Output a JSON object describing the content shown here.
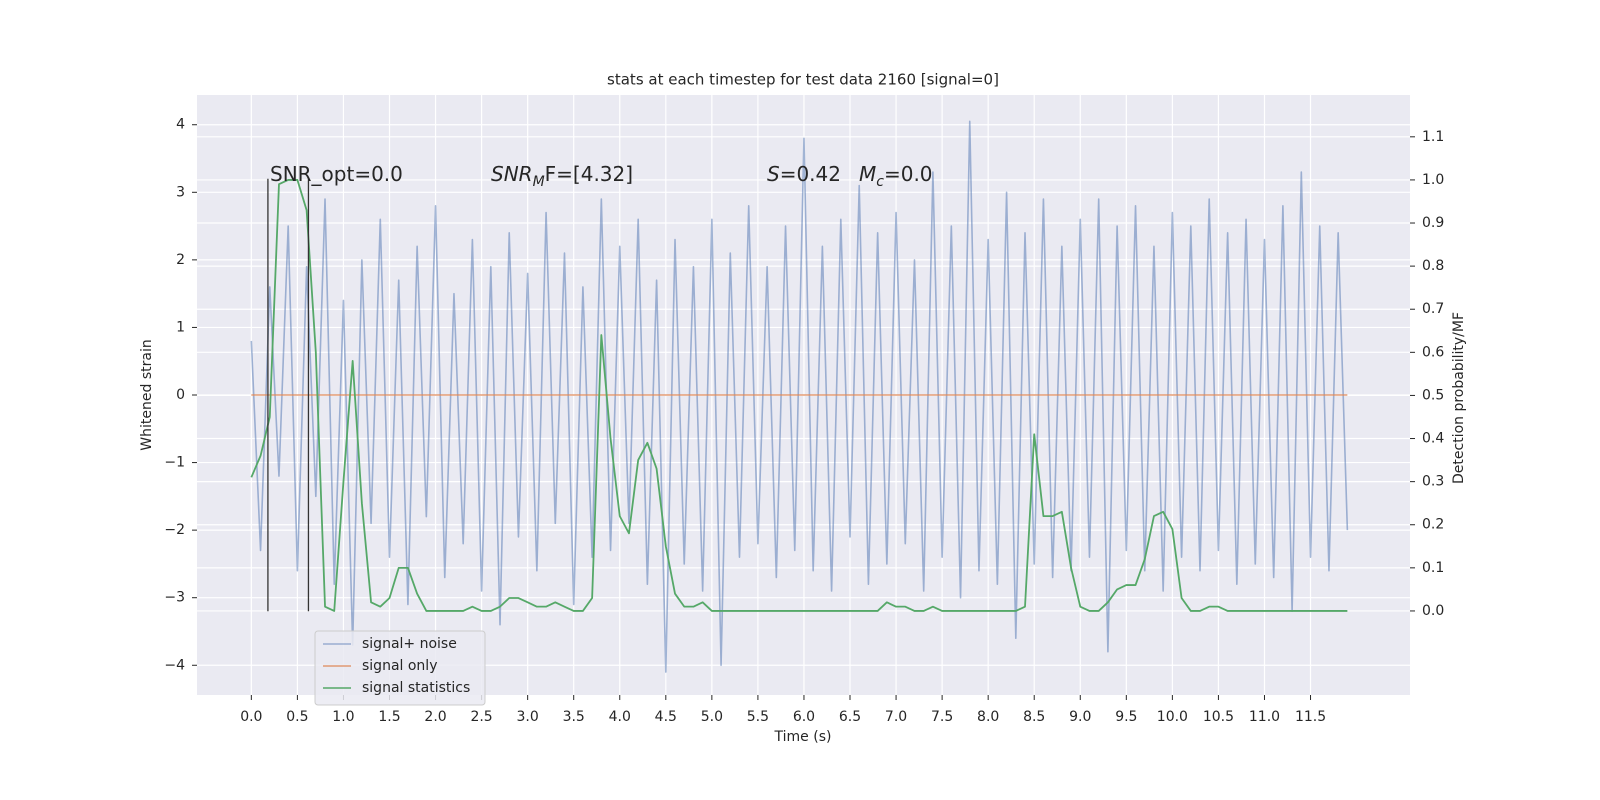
{
  "chart_data": {
    "type": "line",
    "title": "stats at each timestep for test data 2160 [signal=0]",
    "xlabel": "Time (s)",
    "ylabel": "Whitened strain",
    "y2label": "Detection probability/MF",
    "annotations": [
      {
        "text": "SNR_opt=0.0"
      },
      {
        "italic": "SNR",
        "sub": "M",
        "text": "F=[4.32]"
      },
      {
        "italic": "S",
        "text": "=0.42"
      },
      {
        "italic": "M",
        "sub": "c",
        "text": "=0.0"
      }
    ],
    "x": [
      0.0,
      0.1,
      0.2,
      0.3,
      0.4,
      0.5,
      0.6,
      0.7,
      0.8,
      0.9,
      1.0,
      1.1,
      1.2,
      1.3,
      1.4,
      1.5,
      1.6,
      1.7,
      1.8,
      1.9,
      2.0,
      2.1,
      2.2,
      2.3,
      2.4,
      2.5,
      2.6,
      2.7,
      2.8,
      2.9,
      3.0,
      3.1,
      3.2,
      3.3,
      3.4,
      3.5,
      3.6,
      3.7,
      3.8,
      3.9,
      4.0,
      4.1,
      4.2,
      4.3,
      4.4,
      4.5,
      4.6,
      4.7,
      4.8,
      4.9,
      5.0,
      5.1,
      5.2,
      5.3,
      5.4,
      5.5,
      5.6,
      5.7,
      5.8,
      5.9,
      6.0,
      6.1,
      6.2,
      6.3,
      6.4,
      6.5,
      6.6,
      6.7,
      6.8,
      6.9,
      7.0,
      7.1,
      7.2,
      7.3,
      7.4,
      7.5,
      7.6,
      7.7,
      7.8,
      7.9,
      8.0,
      8.1,
      8.2,
      8.3,
      8.4,
      8.5,
      8.6,
      8.7,
      8.8,
      8.9,
      9.0,
      9.1,
      9.2,
      9.3,
      9.4,
      9.5,
      9.6,
      9.7,
      9.8,
      9.9,
      10.0,
      10.1,
      10.2,
      10.3,
      10.4,
      10.5,
      10.6,
      10.7,
      10.8,
      10.9,
      11.0,
      11.1,
      11.2,
      11.3,
      11.4,
      11.5,
      11.6,
      11.7,
      11.8,
      11.9
    ],
    "series": [
      {
        "name": "signal+ noise",
        "color": "#4c72b0",
        "values": [
          0.8,
          -2.3,
          1.6,
          -1.2,
          2.5,
          -2.6,
          1.9,
          -1.5,
          2.9,
          -2.8,
          1.4,
          -3.7,
          2.0,
          -1.9,
          2.6,
          -2.4,
          1.7,
          -3.1,
          2.2,
          -1.8,
          2.8,
          -2.7,
          1.5,
          -2.2,
          2.3,
          -2.9,
          1.9,
          -3.4,
          2.4,
          -2.1,
          1.8,
          -2.6,
          2.7,
          -1.9,
          2.1,
          -3.1,
          1.6,
          -2.4,
          2.9,
          -2.3,
          2.2,
          -1.9,
          2.6,
          -2.8,
          1.7,
          -4.1,
          2.3,
          -2.5,
          1.9,
          -2.9,
          2.6,
          -4.0,
          2.1,
          -2.4,
          2.8,
          -2.2,
          1.9,
          -2.7,
          2.5,
          -2.3,
          3.8,
          -2.6,
          2.2,
          -2.9,
          2.6,
          -2.1,
          3.1,
          -2.8,
          2.4,
          -2.5,
          2.7,
          -2.2,
          2.0,
          -2.9,
          3.3,
          -2.4,
          2.5,
          -3.0,
          4.05,
          -2.6,
          2.3,
          -2.8,
          3.0,
          -3.6,
          2.4,
          -2.5,
          2.9,
          -2.7,
          2.2,
          -2.6,
          2.6,
          -2.4,
          2.9,
          -3.8,
          2.5,
          -2.3,
          2.8,
          -2.6,
          2.2,
          -2.9,
          2.7,
          -2.4,
          2.5,
          -2.6,
          2.9,
          -2.3,
          2.4,
          -2.8,
          2.6,
          -2.5,
          2.3,
          -2.7,
          2.8,
          -3.2,
          3.3,
          -2.4,
          2.5,
          -2.6,
          2.4,
          -2.0
        ]
      },
      {
        "name": "signal only",
        "color": "#dd8452",
        "x": [
          0.0,
          11.9
        ],
        "values": [
          0,
          0
        ]
      },
      {
        "name": "signal statistics",
        "color": "#55a868",
        "axis": "y2",
        "values": [
          0.31,
          0.36,
          0.45,
          0.99,
          1.0,
          1.0,
          0.93,
          0.6,
          0.01,
          0.0,
          0.3,
          0.58,
          0.25,
          0.02,
          0.01,
          0.03,
          0.1,
          0.1,
          0.04,
          0.0,
          0.0,
          0.0,
          0.0,
          0.0,
          0.01,
          0.0,
          0.0,
          0.01,
          0.03,
          0.03,
          0.02,
          0.01,
          0.01,
          0.02,
          0.01,
          0.0,
          0.0,
          0.03,
          0.64,
          0.4,
          0.22,
          0.18,
          0.35,
          0.39,
          0.33,
          0.15,
          0.04,
          0.01,
          0.01,
          0.02,
          0.0,
          0.0,
          0.0,
          0.0,
          0.0,
          0.0,
          0.0,
          0.0,
          0.0,
          0.0,
          0.0,
          0.0,
          0.0,
          0.0,
          0.0,
          0.0,
          0.0,
          0.0,
          0.0,
          0.02,
          0.01,
          0.01,
          0.0,
          0.0,
          0.01,
          0.0,
          0.0,
          0.0,
          0.0,
          0.0,
          0.0,
          0.0,
          0.0,
          0.0,
          0.01,
          0.41,
          0.22,
          0.22,
          0.23,
          0.1,
          0.01,
          0.0,
          0.0,
          0.02,
          0.05,
          0.06,
          0.06,
          0.12,
          0.22,
          0.23,
          0.19,
          0.03,
          0.0,
          0.0,
          0.01,
          0.01,
          0.0,
          0.0,
          0.0,
          0.0,
          0.0,
          0.0,
          0.0,
          0.0,
          0.0,
          0.0,
          0.0,
          0.0,
          0.0,
          0.0
        ]
      }
    ],
    "vlines": {
      "x": [
        0.18,
        0.62
      ],
      "ymin": -3.2,
      "ymax": 3.2,
      "color": "#333333"
    },
    "xlim": [
      -0.59,
      12.58
    ],
    "ylim": [
      -4.44,
      4.44
    ],
    "y2lim": [
      -0.195,
      1.197
    ],
    "xticks": [
      {
        "value": 0,
        "label": "0.0"
      },
      {
        "value": 0.5,
        "label": "0.5"
      },
      {
        "value": 1,
        "label": "1.0"
      },
      {
        "value": 1.5,
        "label": "1.5"
      },
      {
        "value": 2,
        "label": "2.0"
      },
      {
        "value": 2.5,
        "label": "2.5"
      },
      {
        "value": 3,
        "label": "3.0"
      },
      {
        "value": 3.5,
        "label": "3.5"
      },
      {
        "value": 4,
        "label": "4.0"
      },
      {
        "value": 4.5,
        "label": "4.5"
      },
      {
        "value": 5,
        "label": "5.0"
      },
      {
        "value": 5.5,
        "label": "5.5"
      },
      {
        "value": 6,
        "label": "6.0"
      },
      {
        "value": 6.5,
        "label": "6.5"
      },
      {
        "value": 7,
        "label": "7.0"
      },
      {
        "value": 7.5,
        "label": "7.5"
      },
      {
        "value": 8,
        "label": "8.0"
      },
      {
        "value": 8.5,
        "label": "8.5"
      },
      {
        "value": 9,
        "label": "9.0"
      },
      {
        "value": 9.5,
        "label": "9.5"
      },
      {
        "value": 10,
        "label": "10.0"
      },
      {
        "value": 10.5,
        "label": "10.5"
      },
      {
        "value": 11,
        "label": "11.0"
      },
      {
        "value": 11.5,
        "label": "11.5"
      }
    ],
    "yticks": [
      {
        "value": -4,
        "label": "−4"
      },
      {
        "value": -3,
        "label": "−3"
      },
      {
        "value": -2,
        "label": "−2"
      },
      {
        "value": -1,
        "label": "−1"
      },
      0,
      1,
      2,
      3,
      4
    ],
    "y2ticks": [
      {
        "value": 0,
        "label": "0.0"
      },
      {
        "value": 0.1,
        "label": "0.1"
      },
      {
        "value": 0.2,
        "label": "0.2"
      },
      {
        "value": 0.3,
        "label": "0.3"
      },
      {
        "value": 0.4,
        "label": "0.4"
      },
      {
        "value": 0.5,
        "label": "0.5"
      },
      {
        "value": 0.6,
        "label": "0.6"
      },
      {
        "value": 0.7,
        "label": "0.7"
      },
      {
        "value": 0.8,
        "label": "0.8"
      },
      {
        "value": 0.9,
        "label": "0.9"
      },
      {
        "value": 1,
        "label": "1.0"
      },
      {
        "value": 1.1,
        "label": "1.1"
      }
    ],
    "grid": true,
    "legend": "lower left",
    "background": "#eaeaf2"
  }
}
